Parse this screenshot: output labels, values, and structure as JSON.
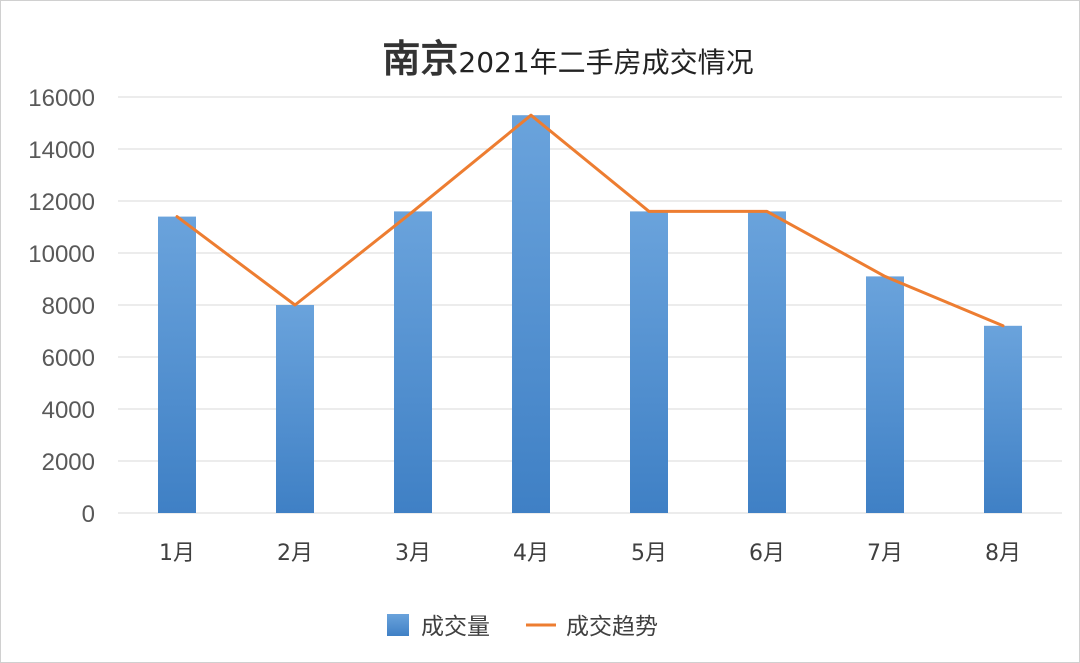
{
  "chart_data": {
    "type": "bar",
    "title_highlight": "南京",
    "title_rest": "2021年二手房成交情况",
    "categories": [
      "1月",
      "2月",
      "3月",
      "4月",
      "5月",
      "6月",
      "7月",
      "8月"
    ],
    "series": [
      {
        "name": "成交量",
        "type": "bar",
        "values": [
          11400,
          8000,
          11600,
          15300,
          11600,
          11600,
          9100,
          7200
        ]
      },
      {
        "name": "成交趋势",
        "type": "line",
        "values": [
          11400,
          8000,
          11600,
          15300,
          11600,
          11600,
          9100,
          7200
        ]
      }
    ],
    "yticks": [
      "0",
      "2000",
      "4000",
      "6000",
      "8000",
      "10000",
      "12000",
      "14000",
      "16000"
    ],
    "ylim": [
      0,
      16000
    ],
    "grid": true,
    "legend_position": "bottom",
    "colors": {
      "bar_top": "#6aa3dc",
      "bar_bottom": "#3f80c5",
      "line": "#ed7d31",
      "grid": "#d9d9d9"
    }
  }
}
